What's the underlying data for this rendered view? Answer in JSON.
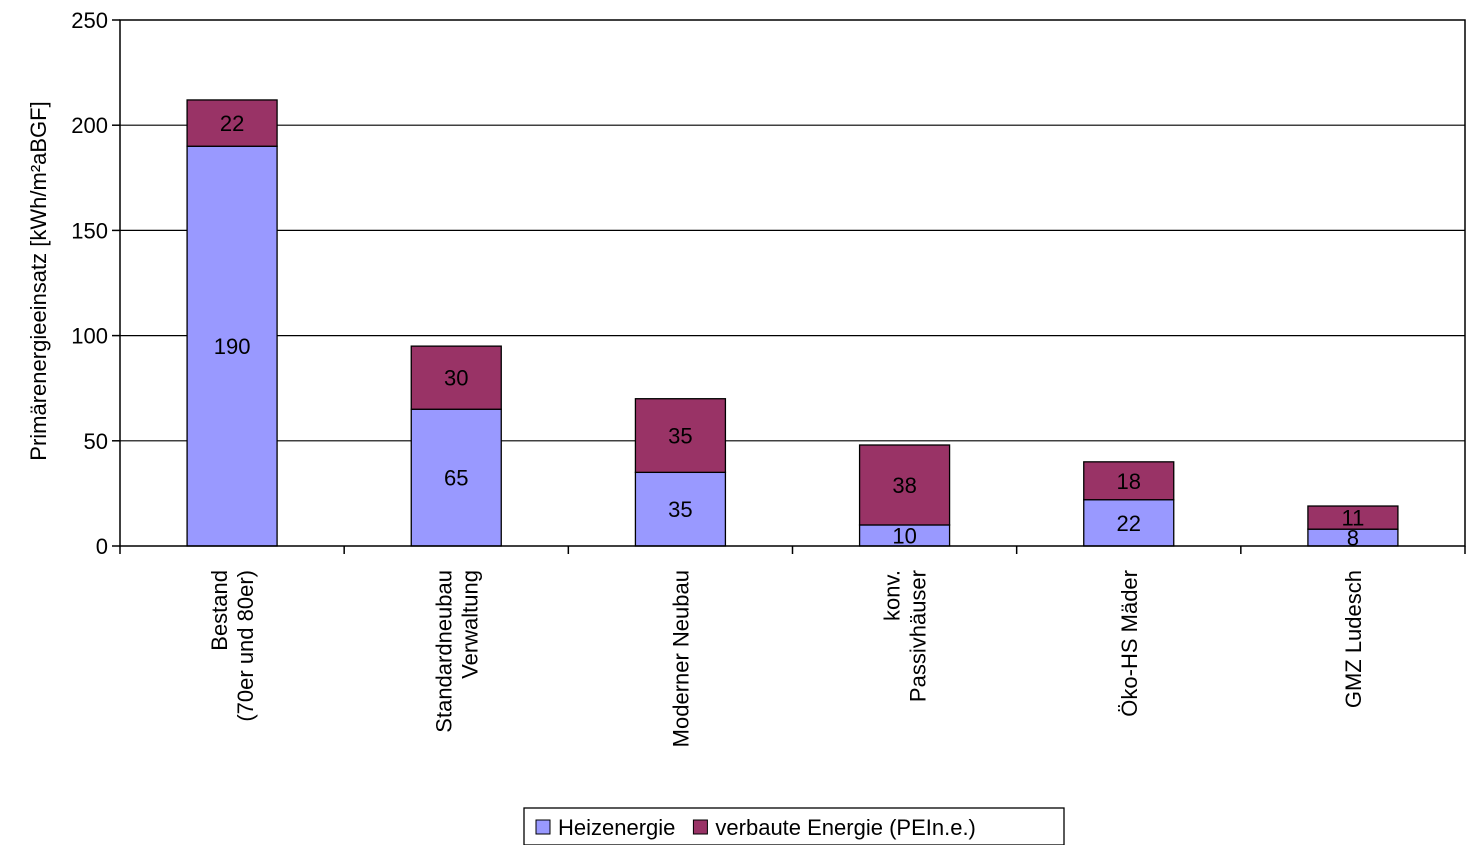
{
  "chart_data": {
    "type": "bar",
    "stacked": true,
    "title": "",
    "xlabel": "",
    "ylabel": "Primärenergieeinsatz [kWh/m²aBGF]",
    "ylim": [
      0,
      250
    ],
    "yticks": [
      "0",
      "50",
      "100",
      "150",
      "200",
      "250"
    ],
    "grid": true,
    "legend_position": "bottom-center",
    "categories": [
      [
        "Bestand",
        "(70er und 80er)"
      ],
      [
        "Standardneubau",
        "Verwaltung"
      ],
      [
        "Moderner Neubau"
      ],
      [
        "konv.",
        "Passivhäuser"
      ],
      [
        "Öko-HS Mäder"
      ],
      [
        "GMZ Ludesch"
      ]
    ],
    "series": [
      {
        "name": "Heizenergie",
        "color": "#9999ff",
        "values": [
          190,
          65,
          35,
          10,
          22,
          8
        ]
      },
      {
        "name": "verbaute Energie (PEIn.e.)",
        "color": "#993366",
        "values": [
          22,
          30,
          35,
          38,
          18,
          11
        ]
      }
    ]
  }
}
